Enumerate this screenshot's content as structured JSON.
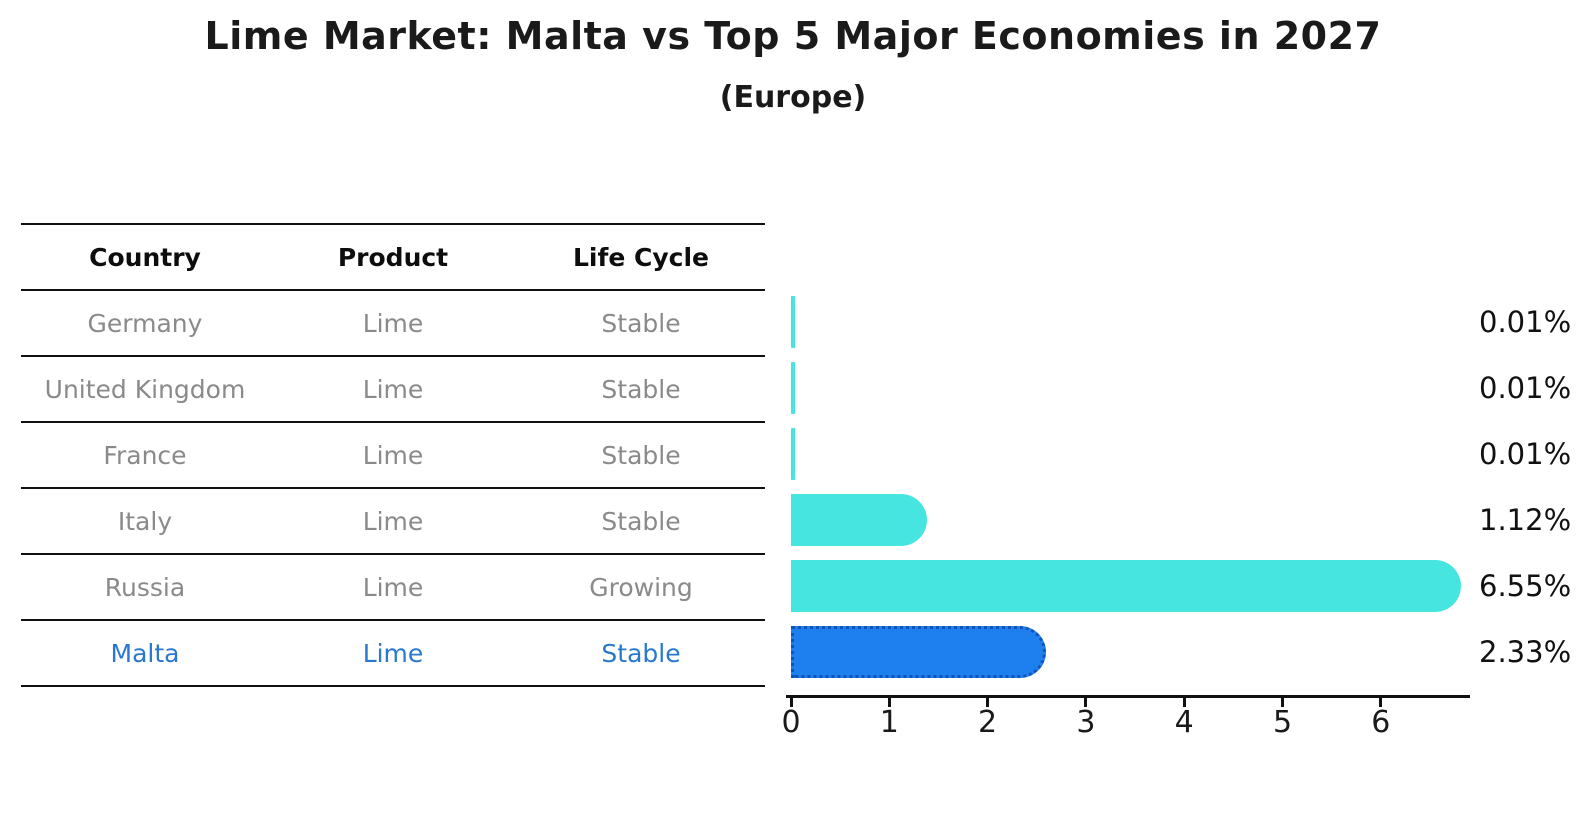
{
  "title": "Lime Market: Malta vs Top 5 Major Economies in 2027",
  "subtitle": "(Europe)",
  "table": {
    "headers": [
      "Country",
      "Product",
      "Life Cycle"
    ],
    "rows": [
      {
        "country": "Germany",
        "product": "Lime",
        "life_cycle": "Stable",
        "highlight": false
      },
      {
        "country": "United Kingdom",
        "product": "Lime",
        "life_cycle": "Stable",
        "highlight": false
      },
      {
        "country": "France",
        "product": "Lime",
        "life_cycle": "Stable",
        "highlight": false
      },
      {
        "country": "Italy",
        "product": "Lime",
        "life_cycle": "Stable",
        "highlight": false
      },
      {
        "country": "Russia",
        "product": "Lime",
        "life_cycle": "Growing",
        "highlight": false
      },
      {
        "country": "Malta",
        "product": "Lime",
        "life_cycle": "Stable",
        "highlight": true
      }
    ]
  },
  "chart_data": {
    "type": "bar",
    "orientation": "horizontal",
    "title": "Lime Market: Malta vs Top 5 Major Economies in 2027",
    "subtitle": "(Europe)",
    "categories": [
      "Germany",
      "United Kingdom",
      "France",
      "Italy",
      "Russia",
      "Malta"
    ],
    "values": [
      0.01,
      0.01,
      0.01,
      1.12,
      6.55,
      2.33
    ],
    "value_labels": [
      "0.01%",
      "0.01%",
      "0.01%",
      "1.12%",
      "6.55%",
      "2.33%"
    ],
    "x_tick_labels": [
      "0",
      "1",
      "2",
      "3",
      "4",
      "5",
      "6"
    ],
    "xlim": [
      0,
      6.9
    ],
    "grid": false,
    "legend": "none",
    "highlight_index": 5,
    "highlight_category": "Malta",
    "bar_color_default": "#46e5e0",
    "bar_color_highlight": "#1e7fee",
    "highlight_border_color": "#0d54b8",
    "highlight_text_color": "#2878d0"
  }
}
